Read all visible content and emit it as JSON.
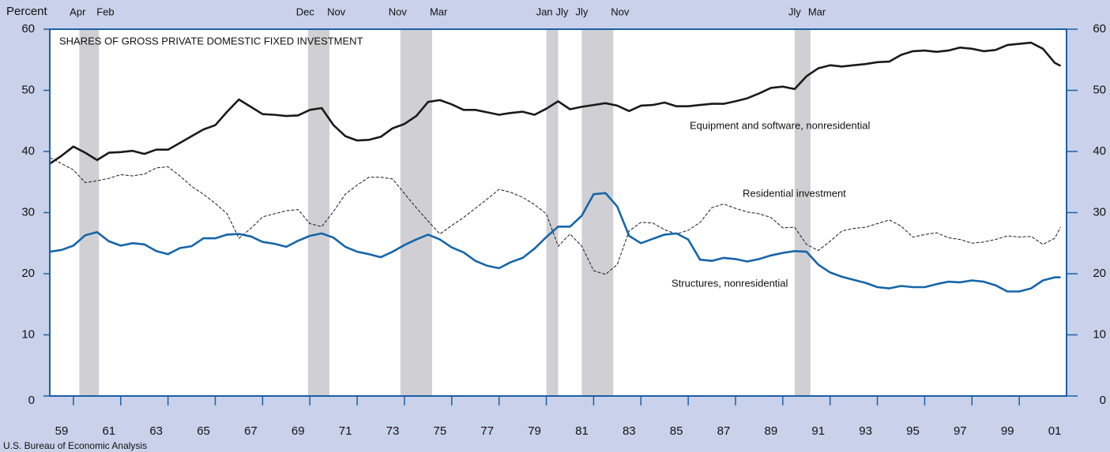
{
  "chart_data": {
    "type": "line",
    "title": "SHARES OF GROSS PRIVATE DOMESTIC FIXED INVESTMENT",
    "y_label": "Percent",
    "source": "U.S. Bureau of Economic Analysis",
    "x": [
      1959,
      1959.5,
      1960,
      1960.5,
      1961,
      1961.5,
      1962,
      1962.5,
      1963,
      1963.5,
      1964,
      1964.5,
      1965,
      1965.5,
      1966,
      1966.5,
      1967,
      1967.5,
      1968,
      1968.5,
      1969,
      1969.5,
      1970,
      1970.5,
      1971,
      1971.5,
      1972,
      1972.5,
      1973,
      1973.5,
      1974,
      1974.5,
      1975,
      1975.5,
      1976,
      1976.5,
      1977,
      1977.5,
      1978,
      1978.5,
      1979,
      1979.5,
      1980,
      1980.5,
      1981,
      1981.5,
      1982,
      1982.5,
      1983,
      1983.5,
      1984,
      1984.5,
      1985,
      1985.5,
      1986,
      1986.5,
      1987,
      1987.5,
      1988,
      1988.5,
      1989,
      1989.5,
      1990,
      1990.5,
      1991,
      1991.5,
      1992,
      1992.5,
      1993,
      1993.5,
      1994,
      1994.5,
      1995,
      1995.5,
      1996,
      1996.5,
      1997,
      1997.5,
      1998,
      1998.5,
      1999,
      1999.5,
      2000,
      2000.5,
      2001,
      2001.5,
      2001.75
    ],
    "series": [
      {
        "name": "Equipment and software, nonresidential",
        "color": "#1a1a1a",
        "dash": false,
        "values": [
          38,
          39.3,
          40.8,
          39.8,
          38.6,
          39.8,
          39.9,
          40.1,
          39.6,
          40.3,
          40.3,
          41.4,
          42.5,
          43.6,
          44.3,
          46.5,
          48.5,
          47.3,
          46.1,
          46,
          45.8,
          45.9,
          46.8,
          47.1,
          44.3,
          42.5,
          41.8,
          41.9,
          42.4,
          43.8,
          44.5,
          45.8,
          48.1,
          48.4,
          47.7,
          46.8,
          46.8,
          46.4,
          46,
          46.3,
          46.5,
          46,
          47,
          48.2,
          46.9,
          47.3,
          47.6,
          47.9,
          47.5,
          46.6,
          47.5,
          47.6,
          48,
          47.4,
          47.4,
          47.6,
          47.8,
          47.8,
          48.2,
          48.7,
          49.5,
          50.4,
          50.6,
          50.2,
          52.3,
          53.6,
          54.1,
          53.9,
          54.1,
          54.3,
          54.6,
          54.7,
          55.8,
          56.4,
          56.5,
          56.3,
          56.5,
          57,
          56.8,
          56.4,
          56.6,
          57.4,
          57.6,
          57.8,
          56.8,
          54.5,
          54
        ]
      },
      {
        "name": "Residential investment",
        "color": "#1a1a1a",
        "dash": true,
        "values": [
          39,
          38,
          37,
          34.9,
          35.2,
          35.6,
          36.2,
          36,
          36.3,
          37.3,
          37.5,
          36,
          34.3,
          33,
          31.5,
          29.8,
          25.8,
          27.4,
          29.3,
          29.8,
          30.3,
          30.5,
          28.2,
          27.7,
          30.2,
          33,
          34.5,
          35.8,
          35.8,
          35.5,
          33.1,
          30.8,
          28.6,
          26.5,
          27.9,
          29.2,
          30.7,
          32.2,
          33.8,
          33.3,
          32.5,
          31.3,
          29.8,
          24.5,
          26.5,
          24.5,
          20.5,
          19.9,
          21.5,
          27,
          28.4,
          28.3,
          27.2,
          26.5,
          27.1,
          28.4,
          30.8,
          31.4,
          30.7,
          30.1,
          29.8,
          29.2,
          27.5,
          27.6,
          24.8,
          23.8,
          25.3,
          27,
          27.4,
          27.6,
          28.2,
          28.8,
          27.8,
          26,
          26.4,
          26.7,
          25.9,
          25.6,
          25,
          25.2,
          25.6,
          26.2,
          26,
          26.1,
          24.8,
          25.8,
          27.6
        ]
      },
      {
        "name": "Structures, nonresidential",
        "color": "#1565a8",
        "dash": false,
        "values": [
          23.6,
          23.9,
          24.6,
          26.3,
          26.8,
          25.3,
          24.6,
          25,
          24.8,
          23.7,
          23.2,
          24.2,
          24.5,
          25.8,
          25.8,
          26.4,
          26.5,
          26.1,
          25.2,
          24.9,
          24.4,
          25.4,
          26.2,
          26.6,
          25.9,
          24.4,
          23.6,
          23.2,
          22.7,
          23.6,
          24.7,
          25.6,
          26.4,
          25.6,
          24.3,
          23.5,
          22.1,
          21.3,
          20.9,
          21.9,
          22.6,
          24.1,
          26,
          27.7,
          27.7,
          29.5,
          33,
          33.2,
          31,
          26.2,
          25,
          25.7,
          26.4,
          26.6,
          25.6,
          22.3,
          22.1,
          22.6,
          22.4,
          22,
          22.4,
          23,
          23.4,
          23.7,
          23.6,
          21.5,
          20.2,
          19.5,
          19,
          18.5,
          17.8,
          17.6,
          18,
          17.8,
          17.8,
          18.3,
          18.7,
          18.6,
          18.9,
          18.7,
          18.1,
          17.1,
          17.1,
          17.6,
          18.9,
          19.4,
          19.4
        ]
      }
    ],
    "recessions": [
      {
        "start": 1960.25,
        "end": 1961.08,
        "start_label": "Apr",
        "end_label": "Feb"
      },
      {
        "start": 1969.92,
        "end": 1970.83,
        "start_label": "Dec",
        "end_label": "Nov"
      },
      {
        "start": 1973.83,
        "end": 1975.17,
        "start_label": "Nov",
        "end_label": "Mar"
      },
      {
        "start": 1980.0,
        "end": 1980.5,
        "start_label": "Jan",
        "end_label": "Jly"
      },
      {
        "start": 1981.5,
        "end": 1982.83,
        "start_label": "Jly",
        "end_label": "Nov"
      },
      {
        "start": 1990.5,
        "end": 1991.17,
        "start_label": "Jly",
        "end_label": "Mar"
      }
    ],
    "recession_color": "#d0d0d4",
    "xlim": [
      1959,
      2002
    ],
    "xticks": [
      1960,
      1962,
      1964,
      1966,
      1968,
      1970,
      1972,
      1974,
      1976,
      1978,
      1980,
      1982,
      1984,
      1986,
      1988,
      1990,
      1992,
      1994,
      1996,
      1998,
      2000
    ],
    "xtick_labels": [
      {
        "value": 1959.5,
        "label": "59"
      },
      {
        "value": 1961.5,
        "label": "61"
      },
      {
        "value": 1963.5,
        "label": "63"
      },
      {
        "value": 1965.5,
        "label": "65"
      },
      {
        "value": 1967.5,
        "label": "67"
      },
      {
        "value": 1969.5,
        "label": "69"
      },
      {
        "value": 1971.5,
        "label": "71"
      },
      {
        "value": 1973.5,
        "label": "73"
      },
      {
        "value": 1975.5,
        "label": "75"
      },
      {
        "value": 1977.5,
        "label": "77"
      },
      {
        "value": 1979.5,
        "label": "79"
      },
      {
        "value": 1981.5,
        "label": "81"
      },
      {
        "value": 1983.5,
        "label": "83"
      },
      {
        "value": 1985.5,
        "label": "85"
      },
      {
        "value": 1987.5,
        "label": "87"
      },
      {
        "value": 1989.5,
        "label": "89"
      },
      {
        "value": 1991.5,
        "label": "91"
      },
      {
        "value": 1993.5,
        "label": "93"
      },
      {
        "value": 1995.5,
        "label": "95"
      },
      {
        "value": 1997.5,
        "label": "97"
      },
      {
        "value": 1999.5,
        "label": "99"
      },
      {
        "value": 2001.5,
        "label": "01"
      }
    ],
    "ylim": [
      0,
      60
    ],
    "yticks": [
      0,
      10,
      20,
      30,
      40,
      50,
      60
    ],
    "y2lim": [
      0,
      60
    ],
    "y2ticks": [
      0,
      10,
      20,
      30,
      40,
      50,
      60
    ],
    "grid": false
  }
}
